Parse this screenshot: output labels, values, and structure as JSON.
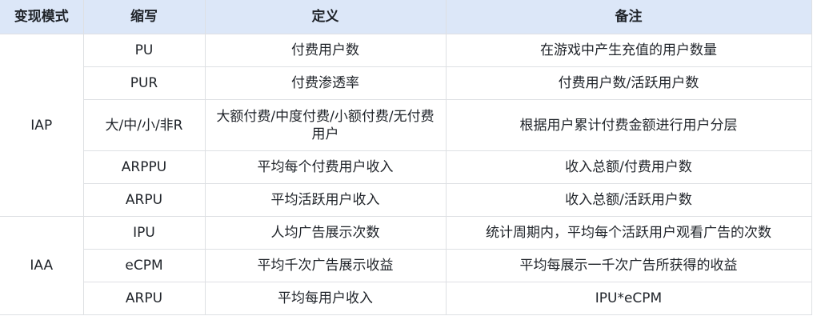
{
  "header": [
    "变现模式",
    "缩写",
    "定义",
    "备注"
  ],
  "groups": [
    {
      "mode": "IAP",
      "rows": [
        {
          "abbr": "PU",
          "definition": "付费用户数",
          "note": "在游戏中产生充值的用户数量"
        },
        {
          "abbr": "PUR",
          "definition": "付费渗透率",
          "note": "付费用户数/活跃用户数"
        },
        {
          "abbr": "大/中/小/非R",
          "definition": "大额付费/中度付费/小额付费/无付费用户",
          "note": "根据用户累计付费金额进行用户分层"
        },
        {
          "abbr": "ARPPU",
          "definition": "平均每个付费用户收入",
          "note": "收入总额/付费用户数"
        },
        {
          "abbr": "ARPU",
          "definition": "平均活跃用户收入",
          "note": "收入总额/活跃用户数"
        }
      ]
    },
    {
      "mode": "IAA",
      "rows": [
        {
          "abbr": "IPU",
          "definition": "人均广告展示次数",
          "note": "统计周期内，平均每个活跃用户观看广告的次数"
        },
        {
          "abbr": "eCPM",
          "definition": "平均千次广告展示收益",
          "note": "平均每展示一千次广告所获得的收益"
        },
        {
          "abbr": "ARPU",
          "definition": "平均每用户收入",
          "note": "IPU*eCPM"
        }
      ]
    }
  ]
}
